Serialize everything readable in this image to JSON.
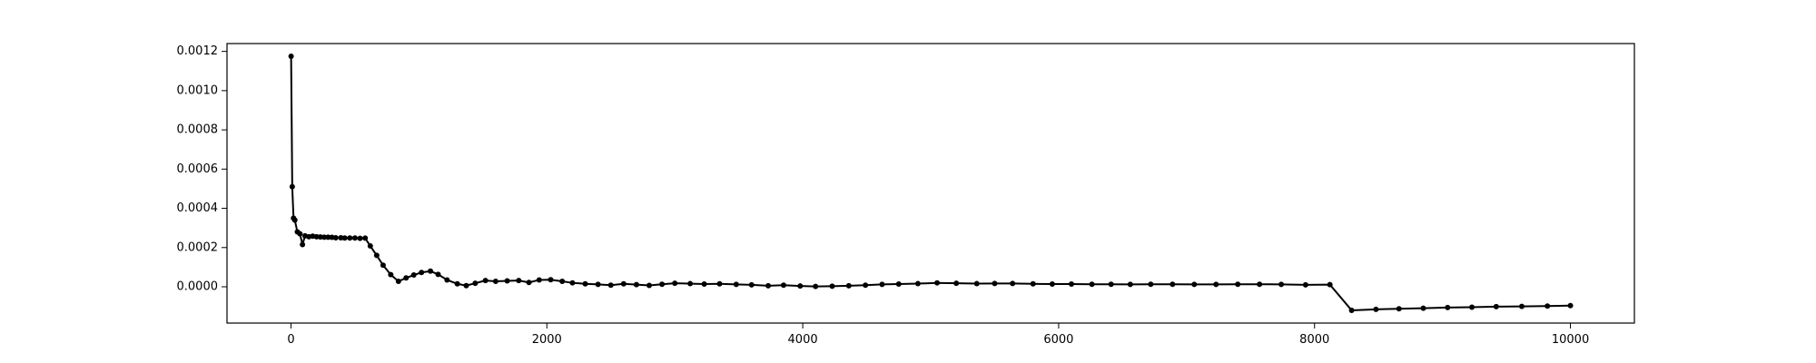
{
  "chart_data": {
    "type": "line",
    "title": "",
    "xlabel": "",
    "ylabel": "",
    "xlim": [
      -500,
      10500
    ],
    "ylim": [
      -0.000185,
      0.00124
    ],
    "x_ticks": [
      0,
      2000,
      4000,
      6000,
      8000,
      10000
    ],
    "y_ticks": [
      0.0,
      0.0002,
      0.0004,
      0.0006,
      0.0008,
      0.001,
      0.0012
    ],
    "x_tick_labels": [
      "0",
      "2000",
      "4000",
      "6000",
      "8000",
      "10000"
    ],
    "y_tick_labels": [
      "0.0000",
      "0.0002",
      "0.0004",
      "0.0006",
      "0.0008",
      "0.0010",
      "0.0012"
    ],
    "grid": false,
    "series": [
      {
        "color": "#000000",
        "marker": "circle",
        "points": [
          [
            1,
            0.001175
          ],
          [
            10,
            0.00051
          ],
          [
            20,
            0.00035
          ],
          [
            30,
            0.00034
          ],
          [
            50,
            0.00028
          ],
          [
            70,
            0.00027
          ],
          [
            90,
            0.000215
          ],
          [
            110,
            0.00026
          ],
          [
            140,
            0.000255
          ],
          [
            170,
            0.000258
          ],
          [
            200,
            0.000255
          ],
          [
            230,
            0.000254
          ],
          [
            260,
            0.000253
          ],
          [
            290,
            0.000253
          ],
          [
            320,
            0.000252
          ],
          [
            350,
            0.00025
          ],
          [
            390,
            0.00025
          ],
          [
            420,
            0.000249
          ],
          [
            460,
            0.000249
          ],
          [
            500,
            0.000249
          ],
          [
            540,
            0.000247
          ],
          [
            580,
            0.000248
          ],
          [
            620,
            0.000208
          ],
          [
            670,
            0.00016
          ],
          [
            720,
            0.00011
          ],
          [
            780,
            6.2e-05
          ],
          [
            840,
            2.8e-05
          ],
          [
            900,
            4.5e-05
          ],
          [
            960,
            6e-05
          ],
          [
            1020,
            7.3e-05
          ],
          [
            1090,
            8e-05
          ],
          [
            1150,
            6.3e-05
          ],
          [
            1220,
            3.5e-05
          ],
          [
            1300,
            1.5e-05
          ],
          [
            1370,
            6e-06
          ],
          [
            1440,
            1.8e-05
          ],
          [
            1520,
            3.2e-05
          ],
          [
            1600,
            2.8e-05
          ],
          [
            1690,
            3e-05
          ],
          [
            1780,
            3.2e-05
          ],
          [
            1860,
            2.2e-05
          ],
          [
            1940,
            3.5e-05
          ],
          [
            2030,
            3.6e-05
          ],
          [
            2120,
            2.8e-05
          ],
          [
            2200,
            2e-05
          ],
          [
            2300,
            1.5e-05
          ],
          [
            2400,
            1.2e-05
          ],
          [
            2500,
            8e-06
          ],
          [
            2600,
            1.5e-05
          ],
          [
            2700,
            1.1e-05
          ],
          [
            2800,
            7e-06
          ],
          [
            2900,
            1.3e-05
          ],
          [
            3000,
            1.8e-05
          ],
          [
            3120,
            1.6e-05
          ],
          [
            3230,
            1.4e-05
          ],
          [
            3350,
            1.5e-05
          ],
          [
            3480,
            1.2e-05
          ],
          [
            3600,
            1e-05
          ],
          [
            3730,
            5e-06
          ],
          [
            3850,
            8e-06
          ],
          [
            3980,
            4e-06
          ],
          [
            4100,
            2e-06
          ],
          [
            4230,
            3e-06
          ],
          [
            4360,
            5e-06
          ],
          [
            4490,
            8e-06
          ],
          [
            4620,
            1.2e-05
          ],
          [
            4750,
            1.4e-05
          ],
          [
            4900,
            1.6e-05
          ],
          [
            5050,
            2e-05
          ],
          [
            5200,
            1.8e-05
          ],
          [
            5360,
            1.6e-05
          ],
          [
            5500,
            1.7e-05
          ],
          [
            5640,
            1.7e-05
          ],
          [
            5800,
            1.5e-05
          ],
          [
            5950,
            1.4e-05
          ],
          [
            6100,
            1.4e-05
          ],
          [
            6260,
            1.3e-05
          ],
          [
            6410,
            1.3e-05
          ],
          [
            6560,
            1.2e-05
          ],
          [
            6720,
            1.3e-05
          ],
          [
            6890,
            1.3e-05
          ],
          [
            7060,
            1.2e-05
          ],
          [
            7230,
            1.2e-05
          ],
          [
            7400,
            1.3e-05
          ],
          [
            7570,
            1.3e-05
          ],
          [
            7740,
            1.2e-05
          ],
          [
            7930,
            1e-05
          ],
          [
            8120,
            1.1e-05
          ],
          [
            8290,
            -0.00012
          ],
          [
            8480,
            -0.000115
          ],
          [
            8660,
            -0.000112
          ],
          [
            8850,
            -0.000109
          ],
          [
            9040,
            -0.000106
          ],
          [
            9230,
            -0.000104
          ],
          [
            9420,
            -0.000101
          ],
          [
            9620,
            -0.0001
          ],
          [
            9820,
            -9.8e-05
          ],
          [
            10000,
            -9.6e-05
          ]
        ]
      }
    ]
  }
}
